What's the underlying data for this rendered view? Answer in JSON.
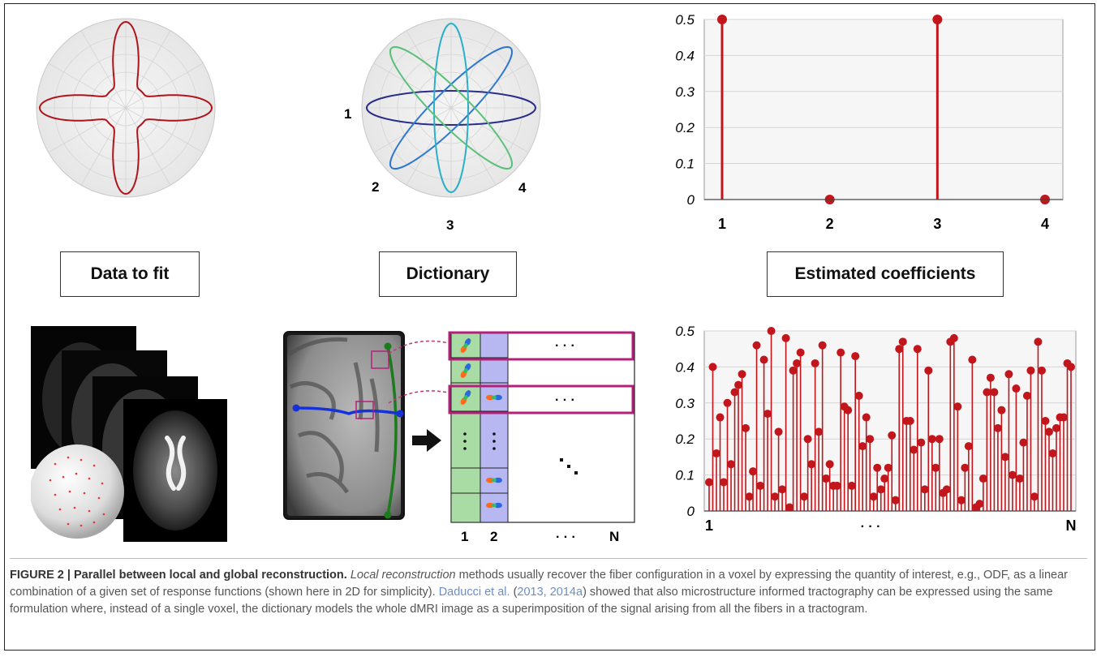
{
  "labels": {
    "data_to_fit": "Data to fit",
    "dictionary": "Dictionary",
    "estimated_coefficients": "Estimated coefficients"
  },
  "dictionary_numbers": [
    "1",
    "2",
    "3",
    "4"
  ],
  "matrix_labels": {
    "col1": "1",
    "col2": "2",
    "dots": "· · ·",
    "n": "N"
  },
  "colors": {
    "odf_red": "#b0141a",
    "stem_red": "#c0161c",
    "dict_1": "#2a2e8a",
    "dict_2": "#2f78d0",
    "dict_3": "#2bb0c8",
    "dict_4": "#5cc07a",
    "matrix_green": "#a9dba4",
    "matrix_blue": "#b7b8f2",
    "highlight": "#b3207a",
    "streamline_green": "#1d7a1d",
    "streamline_blue": "#1532d8"
  },
  "chart_data": [
    {
      "type": "stem",
      "categories": [
        "1",
        "2",
        "3",
        "4"
      ],
      "values": [
        0.5,
        0.0,
        0.5,
        0.0
      ],
      "ylim": [
        0,
        0.5
      ],
      "yticks": [
        "0.5",
        "0.4",
        "0.3",
        "0.2",
        "0.1",
        "0"
      ],
      "grid": true
    },
    {
      "type": "stem",
      "x_labels": {
        "start": "1",
        "middle": "· · ·",
        "end": "N"
      },
      "values": [
        0.08,
        0.4,
        0.16,
        0.26,
        0.08,
        0.3,
        0.13,
        0.33,
        0.35,
        0.38,
        0.23,
        0.04,
        0.11,
        0.46,
        0.07,
        0.42,
        0.27,
        0.5,
        0.04,
        0.22,
        0.06,
        0.48,
        0.01,
        0.39,
        0.41,
        0.44,
        0.04,
        0.2,
        0.13,
        0.41,
        0.22,
        0.46,
        0.09,
        0.13,
        0.07,
        0.07,
        0.44,
        0.29,
        0.28,
        0.07,
        0.43,
        0.32,
        0.18,
        0.26,
        0.2,
        0.04,
        0.12,
        0.06,
        0.09,
        0.12,
        0.21,
        0.03,
        0.45,
        0.47,
        0.25,
        0.25,
        0.17,
        0.45,
        0.19,
        0.06,
        0.39,
        0.2,
        0.12,
        0.2,
        0.05,
        0.06,
        0.47,
        0.48,
        0.29,
        0.03,
        0.12,
        0.18,
        0.42,
        0.01,
        0.02,
        0.09,
        0.33,
        0.37,
        0.33,
        0.23,
        0.28,
        0.15,
        0.38,
        0.1,
        0.34,
        0.09,
        0.19,
        0.32,
        0.39,
        0.04,
        0.47,
        0.39,
        0.25,
        0.22,
        0.16,
        0.23,
        0.26,
        0.26,
        0.41,
        0.4
      ],
      "ylim": [
        0,
        0.5
      ],
      "yticks": [
        "0.5",
        "0.4",
        "0.3",
        "0.2",
        "0.1",
        "0"
      ],
      "grid": true
    }
  ],
  "caption": {
    "head": "FIGURE 2 | Parallel between local and global reconstruction.",
    "italic": "Local reconstruction",
    "text1": " methods usually recover the fiber configuration in a voxel by expressing the quantity of interest, e.g., ODF, as a linear combination of a given set of response functions (shown here in 2D for simplicity). ",
    "ref_author": "Daducci et al.",
    "ref_paren_open": " (",
    "ref_years": "2013, 2014a",
    "text2": ") showed that also microstructure informed tractography can be expressed using the same formulation where, instead of a single voxel, the dictionary models the whole dMRI image as a superimposition of the signal arising from all the fibers in a tractogram."
  }
}
